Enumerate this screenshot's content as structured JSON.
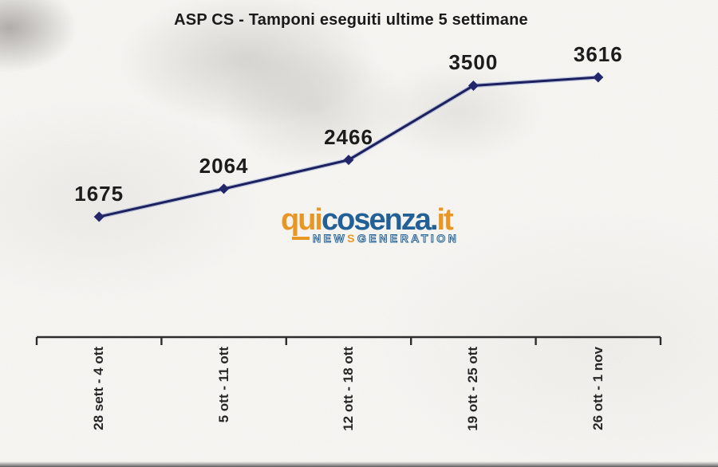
{
  "chart_data": {
    "type": "line",
    "title": "ASP CS - Tamponi eseguiti ultime 5 settimane",
    "categories": [
      "28 sett - 4 ott",
      "5 ott - 11 ott",
      "12 ott - 18 ott",
      "19 ott - 25 ott",
      "26 ott - 1 nov"
    ],
    "values": [
      1675,
      2064,
      2466,
      3500,
      3616
    ],
    "series_name": "Tamponi eseguiti",
    "xlabel": "",
    "ylabel": "",
    "ylim": [
      1600,
      3700
    ],
    "grid": false,
    "legend": false,
    "y_axis_visible": false,
    "marker": "diamond",
    "line_color": "#1d1f5e",
    "line_halo_color": "#5d7fc0",
    "marker_color": "#23266b",
    "axis_color": "#2d2d2d",
    "value_label_color": "#1c1c1c"
  },
  "watermark": {
    "logo_qui": "qui",
    "logo_cosenza": "cosenza",
    "logo_dot": ".",
    "logo_it": "it",
    "tagline_new": "NEW",
    "tagline_s": "S",
    "tagline_generation": "GENERATION",
    "orange": "#e8941c",
    "blue": "#1a5b92"
  }
}
